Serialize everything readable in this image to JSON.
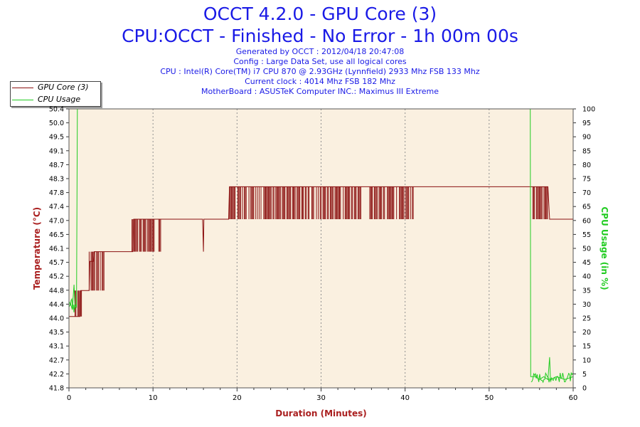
{
  "header": {
    "title": "OCCT 4.2.0 - GPU Core (3)",
    "subtitle": "CPU:OCCT - Finished - No Error - 1h 00m 00s",
    "info": [
      "Generated by OCCT : 2012/04/18 20:47:08",
      "Config : Large Data Set, use all logical cores",
      "CPU : Intel(R) Core(TM) i7 CPU 870 @ 2.93GHz (Lynnfield) 2933 Mhz FSB 133 Mhz",
      "Current clock : 4014 Mhz FSB 182 Mhz",
      "MotherBoard : ASUSTeK Computer INC.: Maximus III Extreme"
    ]
  },
  "legend": [
    {
      "label": "GPU Core (3)",
      "color": "#8b1010"
    },
    {
      "label": "CPU Usage",
      "color": "#22cc22"
    }
  ],
  "chart_data": {
    "type": "line",
    "xlabel": "Duration (Minutes)",
    "ylabel_left": "Temperature (°C)",
    "ylabel_right": "CPU Usage (in %)",
    "xlim": [
      0,
      60
    ],
    "ylim_left": [
      41.8,
      50.4
    ],
    "ylim_right": [
      0,
      100
    ],
    "x_ticks": [
      "0",
      "10",
      "20",
      "30",
      "40",
      "50",
      "60"
    ],
    "y_ticks_left": [
      "50.4",
      "50.0",
      "49.5",
      "49.1",
      "48.7",
      "48.3",
      "47.8",
      "47.4",
      "47.0",
      "46.5",
      "46.1",
      "45.7",
      "45.2",
      "44.8",
      "44.4",
      "44.0",
      "43.5",
      "43.1",
      "42.7",
      "42.2",
      "41.8"
    ],
    "y_ticks_right": [
      "100",
      "95",
      "90",
      "85",
      "80",
      "75",
      "70",
      "65",
      "60",
      "55",
      "50",
      "45",
      "40",
      "35",
      "30",
      "25",
      "20",
      "15",
      "10",
      "5",
      "0"
    ],
    "colors": {
      "temp": "#8b1010",
      "cpu": "#22cc22",
      "plot_bg": "#faf0e0",
      "grid": "#909090",
      "axis_label": "#aa2020",
      "right_label": "#22cc22"
    },
    "series": [
      {
        "name": "GPU Core (3)",
        "axis": "left",
        "points": [
          [
            0.0,
            44.0
          ],
          [
            1.3,
            44.0
          ],
          [
            1.4,
            44.8
          ],
          [
            2.4,
            44.8
          ],
          [
            2.5,
            45.7
          ],
          [
            2.9,
            45.7
          ],
          [
            3.0,
            46.0
          ],
          [
            5.1,
            46.0
          ],
          [
            7.6,
            46.0
          ],
          [
            7.7,
            47.0
          ],
          [
            15.9,
            47.0
          ],
          [
            16.0,
            46.0
          ],
          [
            16.05,
            47.0
          ],
          [
            19.0,
            47.0
          ],
          [
            19.1,
            48.0
          ],
          [
            55.0,
            48.0
          ],
          [
            56.0,
            48.0
          ],
          [
            57.0,
            48.0
          ],
          [
            57.2,
            47.0
          ],
          [
            60.0,
            47.0
          ]
        ],
        "bursts": [
          {
            "x_start": 0.5,
            "x_end": 1.5,
            "low": 44.0,
            "high": 44.8
          },
          {
            "x_start": 2.4,
            "x_end": 4.2,
            "low": 44.8,
            "high": 46.0
          },
          {
            "x_start": 7.5,
            "x_end": 11.0,
            "low": 46.0,
            "high": 47.0
          },
          {
            "x_start": 19.0,
            "x_end": 34.8,
            "low": 47.0,
            "high": 48.0
          },
          {
            "x_start": 35.8,
            "x_end": 41.0,
            "low": 47.0,
            "high": 48.0
          },
          {
            "x_start": 55.2,
            "x_end": 57.0,
            "low": 47.0,
            "high": 48.0
          }
        ]
      },
      {
        "name": "CPU Usage",
        "axis": "right",
        "points": [
          [
            0.0,
            29
          ],
          [
            0.2,
            30
          ],
          [
            0.4,
            28
          ],
          [
            0.6,
            37
          ],
          [
            0.7,
            30
          ],
          [
            0.9,
            29
          ],
          [
            1.0,
            100
          ],
          [
            54.9,
            100
          ],
          [
            54.95,
            4
          ],
          [
            55.5,
            4
          ],
          [
            56.0,
            3
          ],
          [
            56.5,
            4
          ],
          [
            57.0,
            3
          ],
          [
            57.2,
            11
          ],
          [
            57.3,
            3
          ],
          [
            58.0,
            4
          ],
          [
            59.0,
            3
          ],
          [
            60.0,
            4
          ]
        ]
      }
    ]
  }
}
